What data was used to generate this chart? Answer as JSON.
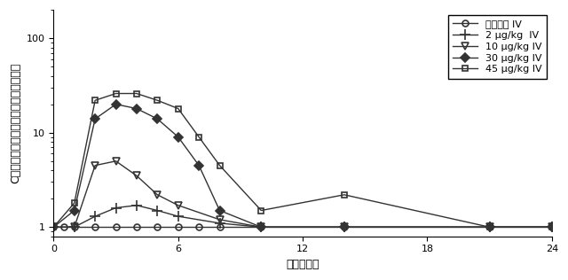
{
  "title": "",
  "xlabel": "時間（日）",
  "ylabel": "C反応性タンパク質の増加倍数（平均）",
  "xlim": [
    0,
    24
  ],
  "ylim_log": [
    0.8,
    200
  ],
  "xticks": [
    0,
    6,
    12,
    18,
    24
  ],
  "series": [
    {
      "label": "プラセボ IV",
      "marker": "o",
      "marker_size": 5,
      "fillstyle": "none",
      "linestyle": "-",
      "color": "#333333",
      "x": [
        0,
        0.5,
        1,
        2,
        3,
        4,
        5,
        6,
        7,
        8,
        10,
        14,
        21,
        24
      ],
      "y": [
        1.0,
        1.0,
        1.0,
        1.0,
        1.0,
        1.0,
        1.0,
        1.0,
        1.0,
        1.0,
        1.0,
        1.0,
        1.0,
        1.0
      ]
    },
    {
      "label": "2 μg/kg  IV",
      "marker": "+",
      "marker_size": 8,
      "fillstyle": "full",
      "linestyle": "-",
      "color": "#333333",
      "x": [
        0,
        1,
        2,
        3,
        4,
        5,
        6,
        8,
        10,
        14,
        21,
        24
      ],
      "y": [
        1.0,
        1.0,
        1.3,
        1.6,
        1.7,
        1.5,
        1.3,
        1.1,
        1.0,
        1.0,
        1.0,
        1.0
      ]
    },
    {
      "label": "10 μg/kg IV",
      "marker": "v",
      "marker_size": 6,
      "fillstyle": "none",
      "linestyle": "-",
      "color": "#333333",
      "x": [
        0,
        1,
        2,
        3,
        4,
        5,
        6,
        8,
        10,
        14,
        21,
        24
      ],
      "y": [
        1.0,
        1.0,
        4.5,
        5.0,
        3.5,
        2.2,
        1.7,
        1.2,
        1.0,
        1.0,
        1.0,
        1.0
      ]
    },
    {
      "label": "30 μg/kg IV",
      "marker": "D",
      "marker_size": 5,
      "fillstyle": "full",
      "linestyle": "-",
      "color": "#333333",
      "x": [
        0,
        1,
        2,
        3,
        4,
        5,
        6,
        7,
        8,
        10,
        14,
        21,
        24
      ],
      "y": [
        1.0,
        1.5,
        14.0,
        20.0,
        18.0,
        14.0,
        9.0,
        4.5,
        1.5,
        1.0,
        1.0,
        1.0,
        1.0
      ]
    },
    {
      "label": "45 μg/kg IV",
      "marker": "s",
      "marker_size": 5,
      "fillstyle": "none",
      "linestyle": "-",
      "color": "#333333",
      "x": [
        0,
        1,
        2,
        3,
        4,
        5,
        6,
        7,
        8,
        10,
        14,
        21,
        24
      ],
      "y": [
        1.0,
        1.8,
        22.0,
        26.0,
        26.0,
        22.0,
        18.0,
        9.0,
        4.5,
        1.5,
        2.2,
        1.0,
        1.0
      ]
    }
  ],
  "background_color": "#ffffff",
  "legend_fontsize": 8,
  "axis_fontsize": 9,
  "tick_fontsize": 8
}
